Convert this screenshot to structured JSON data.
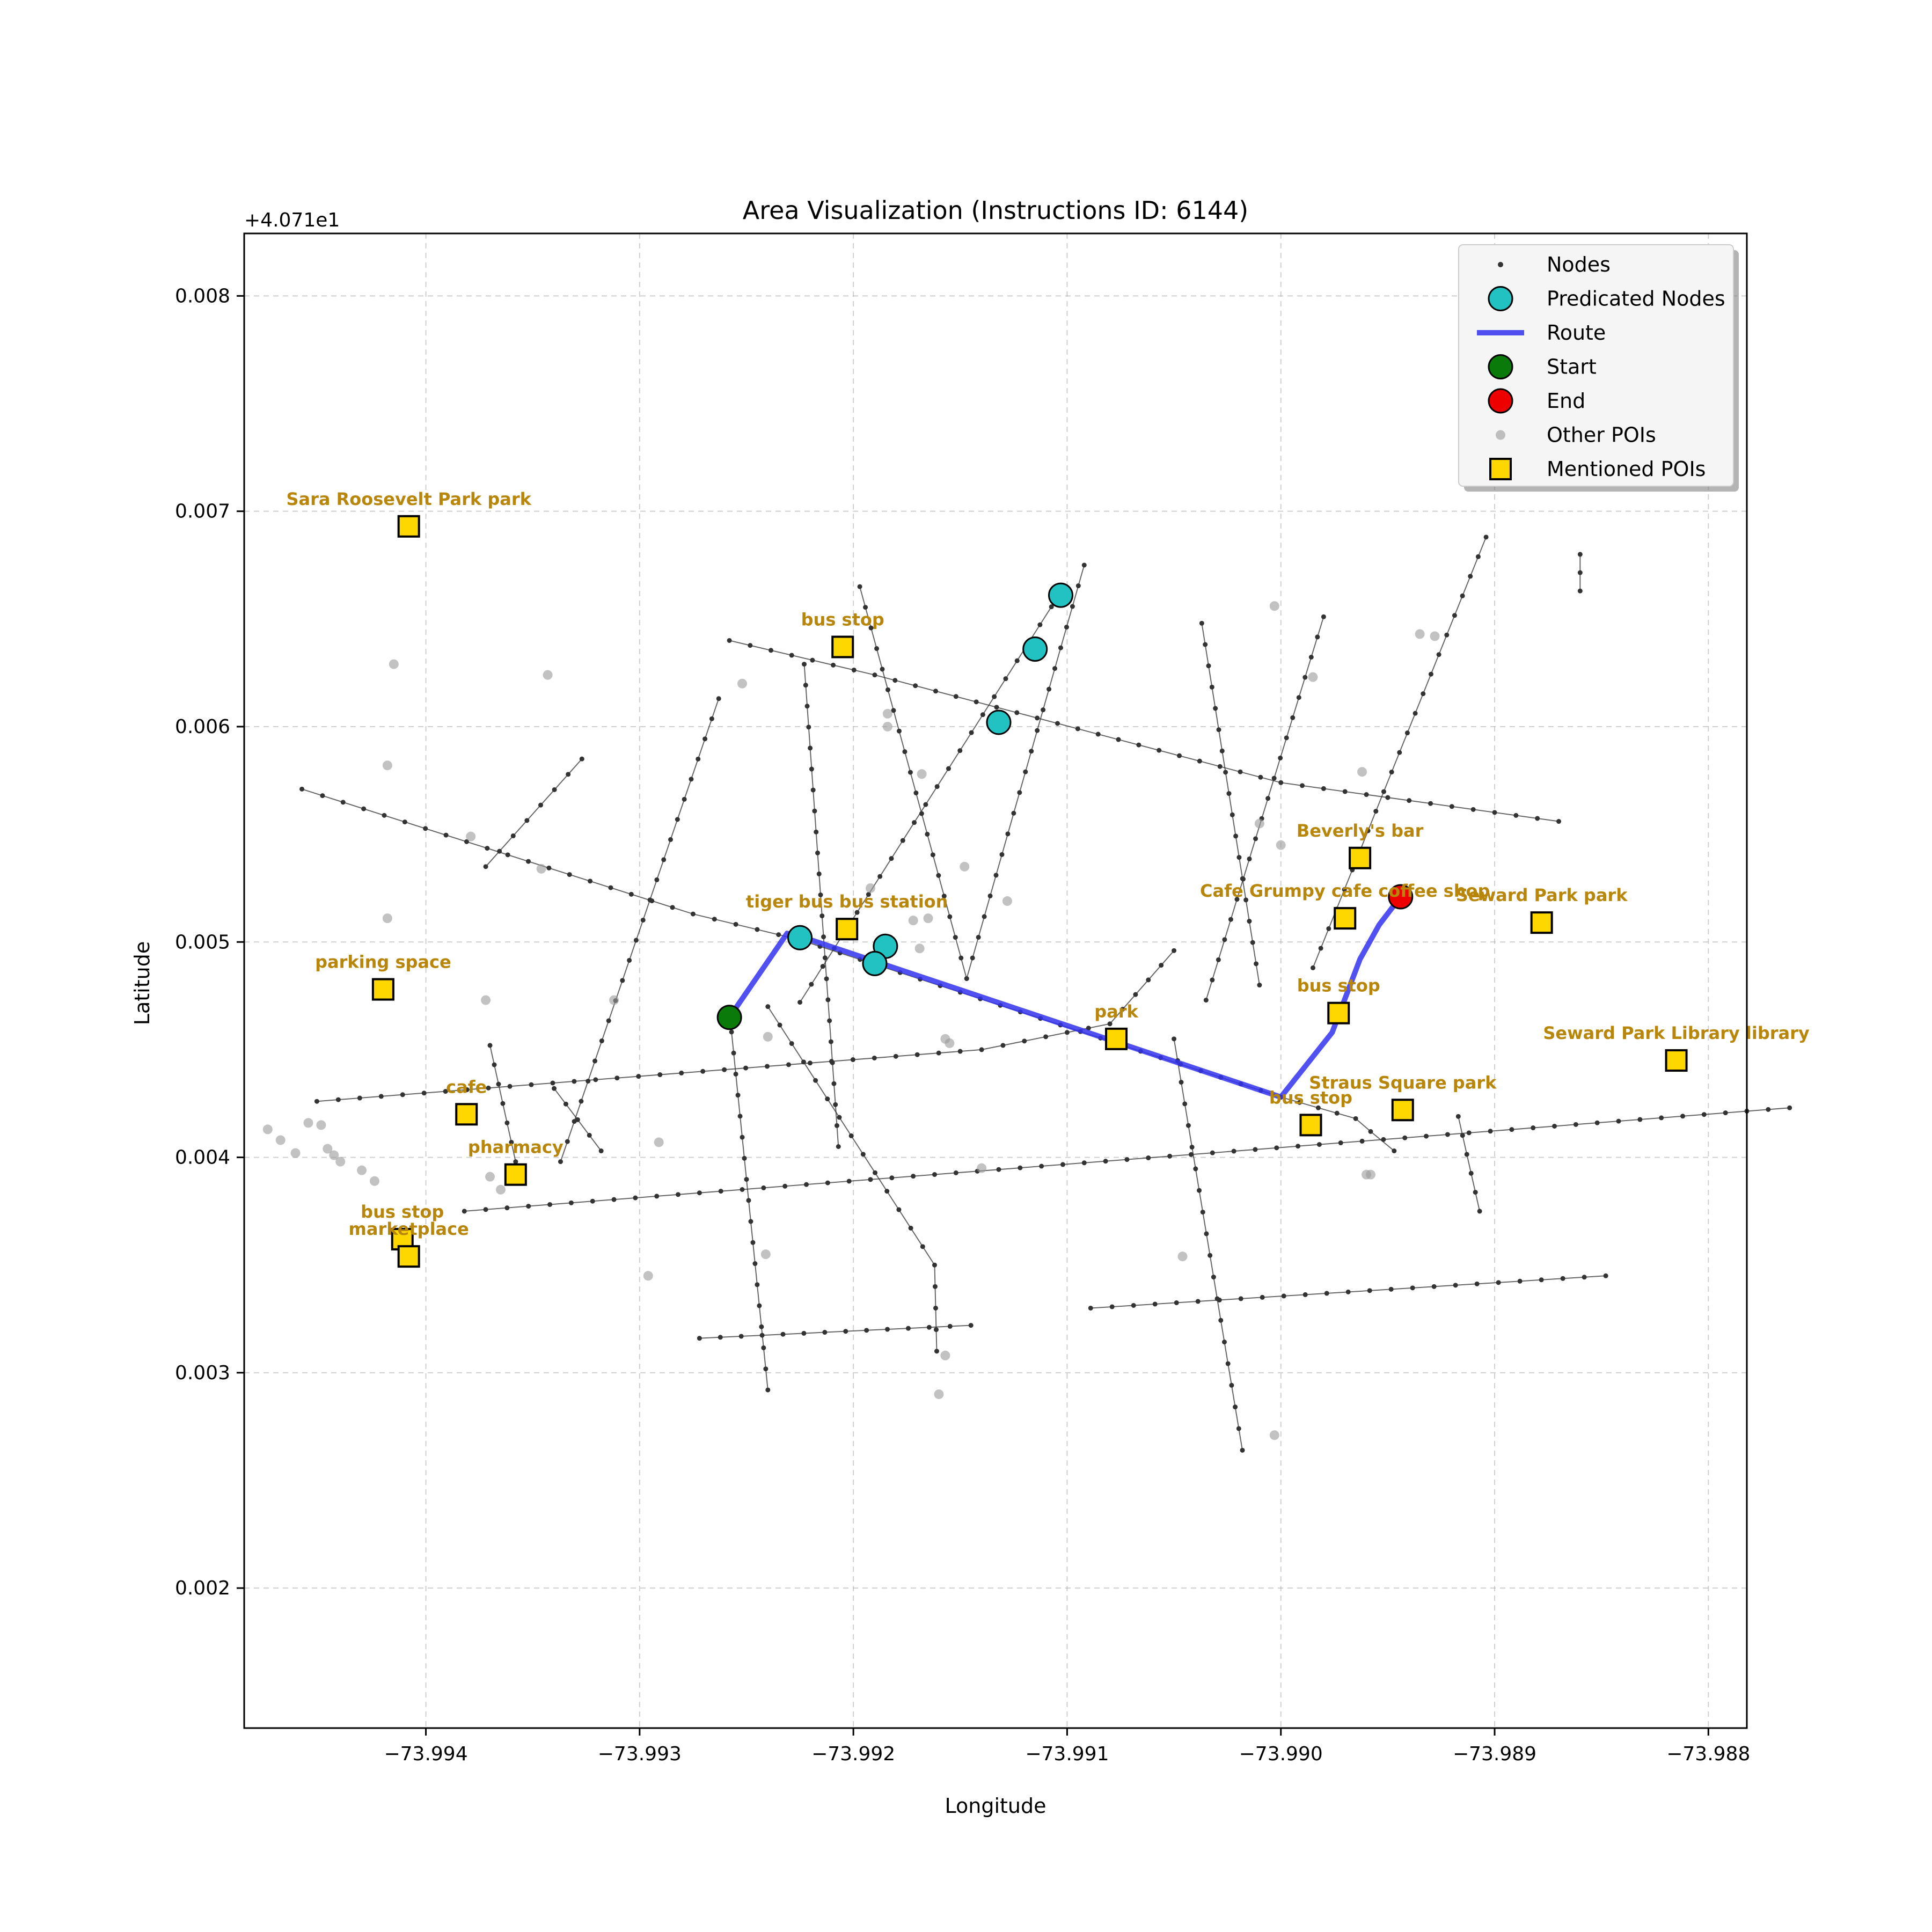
{
  "chart_data": {
    "type": "map",
    "title": "Area Visualization (Instructions ID: 6144)",
    "xlabel": "Longitude",
    "ylabel": "Latitude",
    "offset_text": "+4.071e1",
    "xlim": [
      -73.99485,
      -73.98782
    ],
    "ylim": [
      0.00135,
      0.00829
    ],
    "x_ticks": [
      -73.994,
      -73.993,
      -73.992,
      -73.991,
      -73.99,
      -73.989,
      -73.988
    ],
    "x_tick_labels": [
      "−73.994",
      "−73.993",
      "−73.992",
      "−73.991",
      "−73.990",
      "−73.989",
      "−73.988"
    ],
    "y_ticks": [
      0.002,
      0.003,
      0.004,
      0.005,
      0.006,
      0.007,
      0.008
    ],
    "y_tick_labels": [
      "0.002",
      "0.003",
      "0.004",
      "0.005",
      "0.006",
      "0.007",
      "0.008"
    ],
    "grid": true,
    "legend_position": "top-right",
    "legend": [
      {
        "label": "Nodes",
        "marker": "node"
      },
      {
        "label": "Predicated Nodes",
        "marker": "predicated"
      },
      {
        "label": "Route",
        "marker": "route"
      },
      {
        "label": "Start",
        "marker": "start"
      },
      {
        "label": "End",
        "marker": "end"
      },
      {
        "label": "Other POIs",
        "marker": "other"
      },
      {
        "label": "Mentioned POIs",
        "marker": "mentioned"
      }
    ],
    "streets": [
      [
        [
          -73.99458,
          0.00571
        ],
        [
          -73.99275,
          0.00513
        ],
        [
          -73.99225,
          0.00501
        ],
        [
          -73.99,
          0.00428
        ],
        [
          -73.98965,
          0.00418
        ],
        [
          -73.98958,
          0.00412
        ],
        [
          -73.98947,
          0.00403
        ]
      ],
      [
        [
          -73.99258,
          0.0064
        ],
        [
          -73.9919,
          0.00624
        ],
        [
          -73.99,
          0.00574
        ],
        [
          -73.9887,
          0.00556
        ]
      ],
      [
        [
          -73.99451,
          0.00426
        ],
        [
          -73.9914,
          0.0045
        ],
        [
          -73.9908,
          0.00462
        ],
        [
          -73.9905,
          0.00496
        ]
      ],
      [
        [
          -73.99382,
          0.00375
        ],
        [
          -73.98762,
          0.00423
        ]
      ],
      [
        [
          -73.99089,
          0.0033
        ],
        [
          -73.98848,
          0.00345
        ]
      ],
      [
        [
          -73.99272,
          0.00316
        ],
        [
          -73.99145,
          0.00322
        ]
      ],
      [
        [
          -73.99372,
          0.00535
        ],
        [
          -73.99327,
          0.00585
        ]
      ],
      [
        [
          -73.99337,
          0.00398
        ],
        [
          -73.99263,
          0.00613
        ]
      ],
      [
        [
          -73.99223,
          0.00629
        ],
        [
          -73.99207,
          0.00405
        ]
      ],
      [
        [
          -73.99197,
          0.00665
        ],
        [
          -73.99147,
          0.00483
        ]
      ],
      [
        [
          -73.99147,
          0.00483
        ],
        [
          -73.99092,
          0.00675
        ]
      ],
      [
        [
          -73.9924,
          0.0047
        ],
        [
          -73.99162,
          0.0035
        ],
        [
          -73.99161,
          0.0031
        ]
      ],
      [
        [
          -73.99258,
          0.00468
        ],
        [
          -73.9924,
          0.00292
        ]
      ],
      [
        [
          -73.99225,
          0.00472
        ],
        [
          -73.99102,
          0.00664
        ]
      ],
      [
        [
          -73.99035,
          0.00473
        ],
        [
          -73.9898,
          0.00651
        ]
      ],
      [
        [
          -73.99037,
          0.00648
        ],
        [
          -73.9901,
          0.0048
        ]
      ],
      [
        [
          -73.98985,
          0.00488
        ],
        [
          -73.98904,
          0.00688
        ]
      ],
      [
        [
          -73.9886,
          0.0068
        ],
        [
          -73.9886,
          0.00663
        ]
      ],
      [
        [
          -73.9937,
          0.00452
        ],
        [
          -73.99358,
          0.00398
        ]
      ],
      [
        [
          -73.9934,
          0.00432
        ],
        [
          -73.99318,
          0.00403
        ]
      ],
      [
        [
          -73.9905,
          0.00455
        ],
        [
          -73.99018,
          0.00264
        ]
      ],
      [
        [
          -73.98917,
          0.00419
        ],
        [
          -73.98907,
          0.00375
        ]
      ]
    ],
    "route": [
      [
        -73.99258,
        0.00465
      ],
      [
        -73.99231,
        0.00504
      ],
      [
        -73.99223,
        0.00502
      ],
      [
        -73.99,
        0.00428
      ],
      [
        -73.98976,
        0.00458
      ],
      [
        -73.98963,
        0.00492
      ],
      [
        -73.98954,
        0.00508
      ],
      [
        -73.98944,
        0.00521
      ]
    ],
    "start": [
      -73.99258,
      0.00465
    ],
    "end": [
      -73.98944,
      0.00521
    ],
    "predicated_nodes": [
      [
        -73.99225,
        0.00502
      ],
      [
        -73.99185,
        0.00498
      ],
      [
        -73.9919,
        0.0049
      ],
      [
        -73.99132,
        0.00602
      ],
      [
        -73.99115,
        0.00636
      ],
      [
        -73.99103,
        0.00661
      ]
    ],
    "other_pois": [
      [
        -73.99415,
        0.00629
      ],
      [
        -73.99343,
        0.00624
      ],
      [
        -73.99252,
        0.0062
      ],
      [
        -73.99184,
        0.00606
      ],
      [
        -73.99184,
        0.006
      ],
      [
        -73.99168,
        0.00578
      ],
      [
        -73.99418,
        0.00582
      ],
      [
        -73.99418,
        0.00511
      ],
      [
        -73.99379,
        0.00549
      ],
      [
        -73.99372,
        0.00473
      ],
      [
        -73.99346,
        0.00534
      ],
      [
        -73.99312,
        0.00473
      ],
      [
        -73.99291,
        0.00407
      ],
      [
        -73.99296,
        0.00345
      ],
      [
        -73.9924,
        0.00456
      ],
      [
        -73.99192,
        0.00525
      ],
      [
        -73.99172,
        0.0051
      ],
      [
        -73.99165,
        0.00511
      ],
      [
        -73.99169,
        0.00497
      ],
      [
        -73.99155,
        0.00453
      ],
      [
        -73.99157,
        0.00455
      ],
      [
        -73.99148,
        0.00535
      ],
      [
        -73.99128,
        0.00519
      ],
      [
        -73.99241,
        0.00355
      ],
      [
        -73.99157,
        0.00308
      ],
      [
        -73.9916,
        0.0029
      ],
      [
        -73.99003,
        0.00656
      ],
      [
        -73.98985,
        0.00623
      ],
      [
        -73.98962,
        0.00579
      ],
      [
        -73.98935,
        0.00643
      ],
      [
        -73.98928,
        0.00642
      ],
      [
        -73.9901,
        0.00555
      ],
      [
        -73.99,
        0.00545
      ],
      [
        -73.9914,
        0.00395
      ],
      [
        -73.99046,
        0.00354
      ],
      [
        -73.99003,
        0.00271
      ],
      [
        -73.9896,
        0.00392
      ],
      [
        -73.98958,
        0.00392
      ],
      [
        -73.99474,
        0.00413
      ],
      [
        -73.99468,
        0.00408
      ],
      [
        -73.99461,
        0.00402
      ],
      [
        -73.99455,
        0.00416
      ],
      [
        -73.99449,
        0.00415
      ],
      [
        -73.99446,
        0.00404
      ],
      [
        -73.99443,
        0.00401
      ],
      [
        -73.9944,
        0.00398
      ],
      [
        -73.9943,
        0.00394
      ],
      [
        -73.99424,
        0.00389
      ],
      [
        -73.9937,
        0.00391
      ],
      [
        -73.9936,
        0.00391
      ],
      [
        -73.99365,
        0.00385
      ]
    ],
    "mentioned_pois": [
      {
        "label": "Sara Roosevelt Park   park",
        "lon": -73.99408,
        "lat": 0.00693
      },
      {
        "label": "bus stop",
        "lon": -73.99205,
        "lat": 0.00637
      },
      {
        "label": "Beverly's bar",
        "lon": -73.98963,
        "lat": 0.00539
      },
      {
        "label": "Cafe Grumpy cafe coffee shop",
        "lon": -73.9897,
        "lat": 0.00511
      },
      {
        "label": "Seward Park   park",
        "lon": -73.98878,
        "lat": 0.00509
      },
      {
        "label": "tiger bus bus station",
        "lon": -73.99203,
        "lat": 0.00506
      },
      {
        "label": "parking space",
        "lon": -73.9942,
        "lat": 0.00478
      },
      {
        "label": "bus stop",
        "lon": -73.98973,
        "lat": 0.00467
      },
      {
        "label": "park",
        "lon": -73.99077,
        "lat": 0.00455
      },
      {
        "label": "Seward Park Library library",
        "lon": -73.98815,
        "lat": 0.00445
      },
      {
        "label": "Straus Square   park",
        "lon": -73.98943,
        "lat": 0.00422
      },
      {
        "label": "cafe",
        "lon": -73.99381,
        "lat": 0.0042
      },
      {
        "label": "bus stop",
        "lon": -73.98986,
        "lat": 0.00415
      },
      {
        "label": "pharmacy",
        "lon": -73.99358,
        "lat": 0.00392
      },
      {
        "label": "bus stop",
        "lon": -73.99411,
        "lat": 0.00362
      },
      {
        "label": "marketplace",
        "lon": -73.99408,
        "lat": 0.00354
      }
    ]
  }
}
